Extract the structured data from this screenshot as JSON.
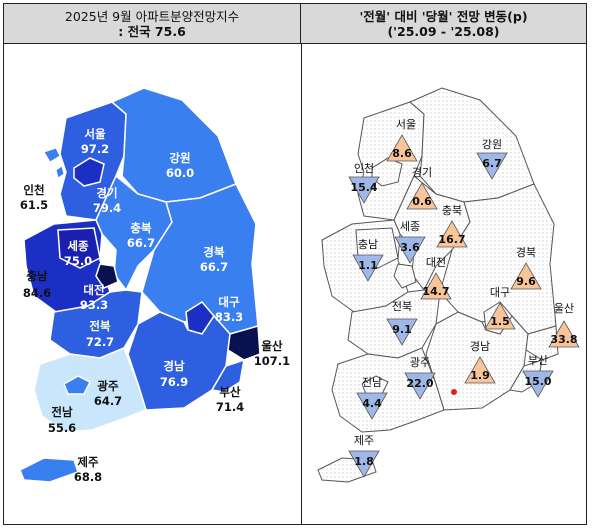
{
  "header_left": {
    "line1": "2025년 9월 아파트분양전망지수",
    "line2": ": 전국 75.6"
  },
  "header_right": {
    "line1": "'전월' 대비 '당월' 전망 변동(p)",
    "line2": "('25.09 - '25.08)"
  },
  "left_regions": [
    {
      "name": "서울",
      "value": "97.2"
    },
    {
      "name": "인천",
      "value": "61.5"
    },
    {
      "name": "경기",
      "value": "79.4"
    },
    {
      "name": "강원",
      "value": "60.0"
    },
    {
      "name": "세종",
      "value": "75.0"
    },
    {
      "name": "충북",
      "value": "66.7"
    },
    {
      "name": "충남",
      "value": "84.6"
    },
    {
      "name": "대전",
      "value": "93.3"
    },
    {
      "name": "경북",
      "value": "66.7"
    },
    {
      "name": "대구",
      "value": "83.3"
    },
    {
      "name": "전북",
      "value": "72.7"
    },
    {
      "name": "울산",
      "value": "107.1"
    },
    {
      "name": "경남",
      "value": "76.9"
    },
    {
      "name": "광주",
      "value": "64.7"
    },
    {
      "name": "부산",
      "value": "71.4"
    },
    {
      "name": "전남",
      "value": "55.6"
    },
    {
      "name": "제주",
      "value": "68.8"
    }
  ],
  "right_regions": [
    {
      "name": "서울",
      "value": "8.6",
      "direction": "up"
    },
    {
      "name": "강원",
      "value": "6.7",
      "direction": "down"
    },
    {
      "name": "인천",
      "value": "15.4",
      "direction": "down"
    },
    {
      "name": "경기",
      "value": "0.6",
      "direction": "up"
    },
    {
      "name": "충북",
      "value": "16.7",
      "direction": "up"
    },
    {
      "name": "세종",
      "value": "3.6",
      "direction": "down"
    },
    {
      "name": "충남",
      "value": "1.1",
      "direction": "down"
    },
    {
      "name": "경북",
      "value": "9.6",
      "direction": "up"
    },
    {
      "name": "대전",
      "value": "14.7",
      "direction": "up"
    },
    {
      "name": "대구",
      "value": "1.5",
      "direction": "up"
    },
    {
      "name": "전북",
      "value": "9.1",
      "direction": "down"
    },
    {
      "name": "울산",
      "value": "33.8",
      "direction": "up"
    },
    {
      "name": "경남",
      "value": "1.9",
      "direction": "up"
    },
    {
      "name": "광주",
      "value": "22.0",
      "direction": "down"
    },
    {
      "name": "부산",
      "value": "15.0",
      "direction": "down"
    },
    {
      "name": "전남",
      "value": "4.4",
      "direction": "down"
    },
    {
      "name": "제주",
      "value": "1.8",
      "direction": "down"
    }
  ],
  "colors": {
    "header_bg": "#d9d9d9",
    "up_fill": "#f8c49a",
    "down_fill": "#9fb8e8",
    "scale_lightest": "#c9e6fb",
    "scale_light": "#3a7ff0",
    "scale_mid": "#2e5fe0",
    "scale_dark": "#1c2fc4",
    "scale_darkest": "#0a1150"
  }
}
